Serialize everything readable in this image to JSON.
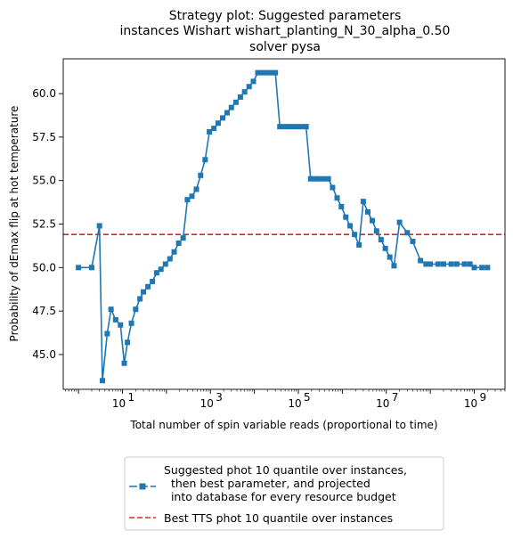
{
  "chart_data": {
    "type": "line",
    "title_lines": [
      "Strategy plot: Suggested parameters",
      "instances Wishart wishart_planting_N_30_alpha_0.50",
      "solver pysa"
    ],
    "xlabel": "Total number of spin variable reads (proportional to time)",
    "ylabel": "Probability of dEmax flip at hot temperature",
    "x_scale": "log",
    "xlim": [
      0.45,
      5000000000
    ],
    "ylim": [
      43.0,
      62.0
    ],
    "x_ticks": [
      {
        "value": 10,
        "base": "10",
        "exp": "1"
      },
      {
        "value": 1000,
        "base": "10",
        "exp": "3"
      },
      {
        "value": 100000,
        "base": "10",
        "exp": "5"
      },
      {
        "value": 10000000,
        "base": "10",
        "exp": "7"
      },
      {
        "value": 1000000000,
        "base": "10",
        "exp": "9"
      }
    ],
    "y_ticks": [
      "45.0",
      "47.5",
      "50.0",
      "52.5",
      "55.0",
      "57.5",
      "60.0"
    ],
    "grid": false,
    "legend_position": "below plot, centered",
    "series": [
      {
        "name": "Suggested phot 10 quantile over instances,\n  then best parameter, and projected\n  into database for every resource budget",
        "style": "line-with-square-markers",
        "color": "#1f77b4",
        "x": [
          1,
          2,
          3,
          3.5,
          4.5,
          5.5,
          7,
          9,
          11,
          13,
          16,
          20,
          25,
          30,
          38,
          48,
          60,
          75,
          95,
          120,
          150,
          190,
          240,
          300,
          380,
          480,
          600,
          760,
          950,
          1200,
          1500,
          1900,
          2400,
          3000,
          3800,
          4800,
          6000,
          7600,
          9500,
          12000,
          15000,
          19000,
          24000,
          30000,
          38000,
          48000,
          60000,
          76000,
          95000,
          120000,
          150000,
          190000,
          240000,
          300000,
          380000,
          480000,
          600000,
          760000,
          950000,
          1200000,
          1500000,
          1900000,
          2400000,
          3000000,
          3800000,
          4800000,
          6000000,
          7600000,
          9500000,
          12000000,
          15000000,
          20000000,
          30000000,
          40000000,
          60000000,
          80000000,
          100000000,
          150000000,
          200000000,
          300000000,
          400000000,
          600000000,
          800000000,
          1000000000,
          1500000000,
          2000000000
        ],
        "y": [
          50.0,
          50.0,
          52.4,
          43.5,
          46.2,
          47.6,
          47.0,
          46.7,
          44.5,
          45.7,
          46.8,
          47.6,
          48.2,
          48.6,
          48.9,
          49.2,
          49.7,
          49.9,
          50.2,
          50.5,
          50.9,
          51.4,
          51.7,
          53.9,
          54.1,
          54.5,
          55.3,
          56.2,
          57.8,
          58.0,
          58.3,
          58.6,
          58.9,
          59.2,
          59.5,
          59.8,
          60.1,
          60.4,
          60.7,
          61.2,
          61.2,
          61.2,
          61.2,
          61.2,
          58.1,
          58.1,
          58.1,
          58.1,
          58.1,
          58.1,
          58.1,
          55.1,
          55.1,
          55.1,
          55.1,
          55.1,
          54.6,
          54.0,
          53.5,
          52.9,
          52.4,
          51.9,
          51.3,
          53.8,
          53.2,
          52.7,
          52.1,
          51.6,
          51.1,
          50.6,
          50.1,
          52.6,
          52.0,
          51.5,
          50.4,
          50.2,
          50.2,
          50.2,
          50.2,
          50.2,
          50.2,
          50.2,
          50.2,
          50.0,
          50.0,
          50.0
        ]
      },
      {
        "name": "Best TTS phot 10 quantile over instances",
        "style": "dashed-line",
        "color": "#d62728",
        "y": 51.9
      }
    ]
  }
}
